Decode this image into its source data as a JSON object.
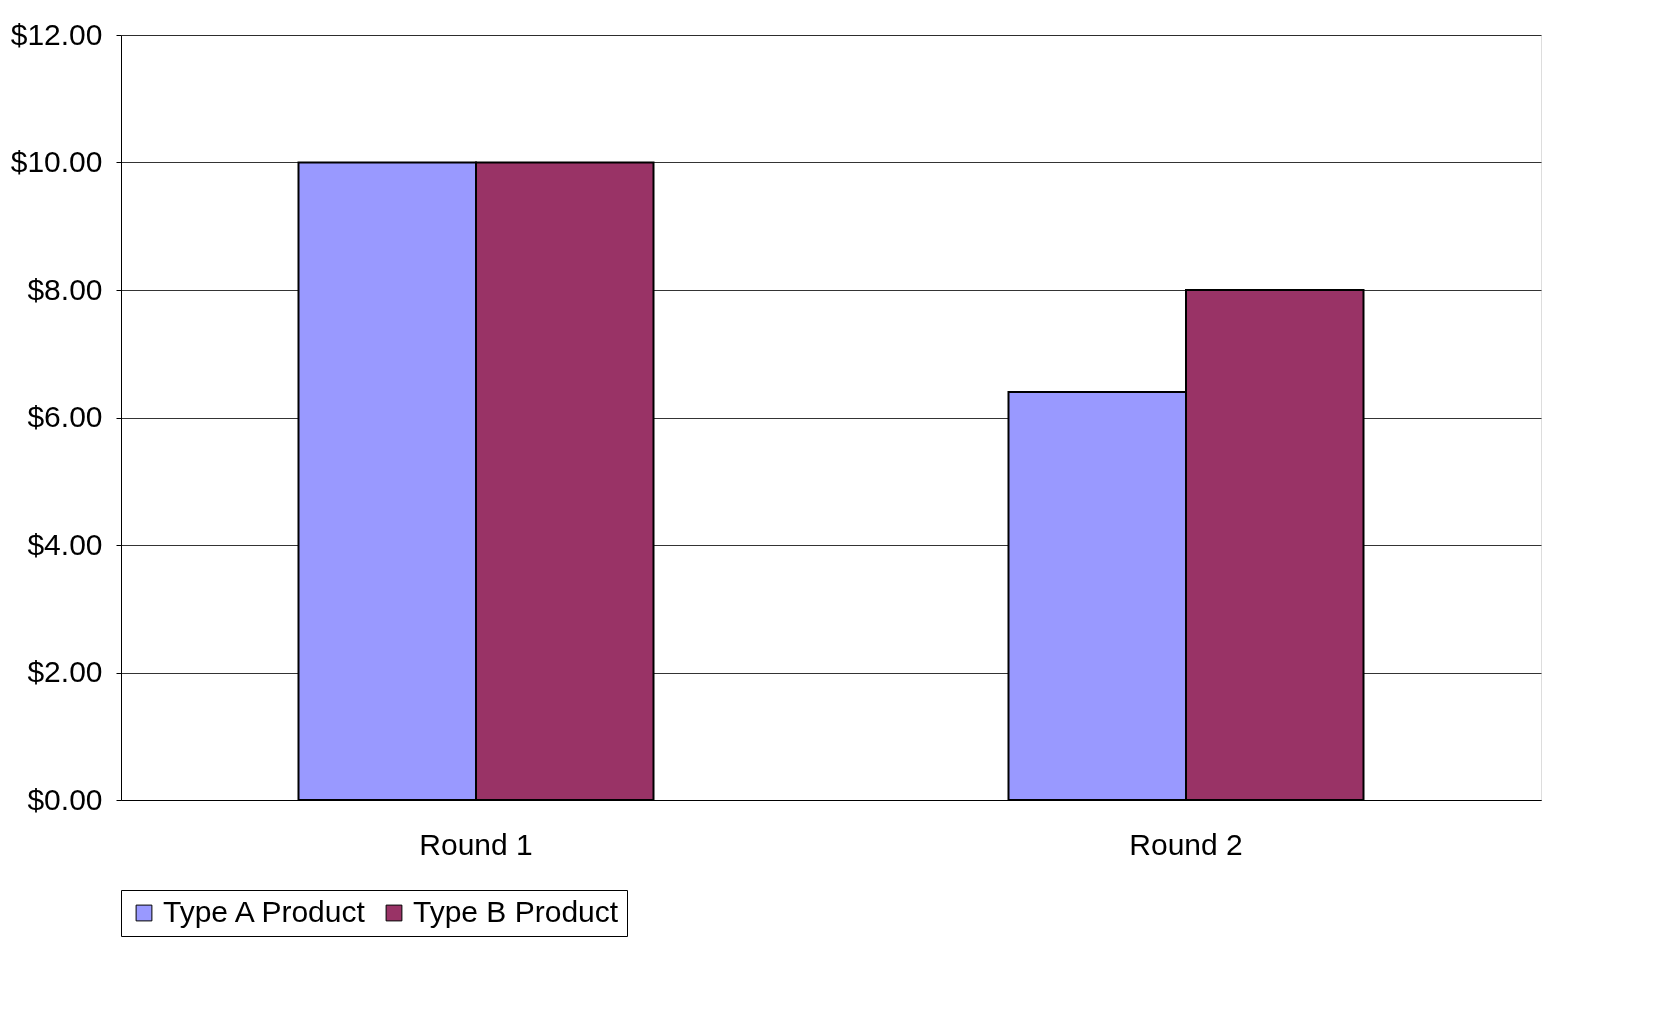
{
  "chart_data": {
    "type": "bar",
    "categories": [
      "Round 1",
      "Round 2"
    ],
    "series": [
      {
        "name": "Type A Product",
        "color": "#9999ff",
        "values": [
          10.0,
          6.4
        ]
      },
      {
        "name": "Type B Product",
        "color": "#993366",
        "values": [
          10.0,
          8.0
        ]
      }
    ],
    "ylim": [
      0,
      12
    ],
    "yticks": [
      {
        "value": 0,
        "label": "$0.00"
      },
      {
        "value": 2,
        "label": "$2.00"
      },
      {
        "value": 4,
        "label": "$4.00"
      },
      {
        "value": 6,
        "label": "$6.00"
      },
      {
        "value": 8,
        "label": "$8.00"
      },
      {
        "value": 10,
        "label": "$10.00"
      },
      {
        "value": 12,
        "label": "$12.00"
      }
    ],
    "grid": "y",
    "legend": "bottom"
  }
}
